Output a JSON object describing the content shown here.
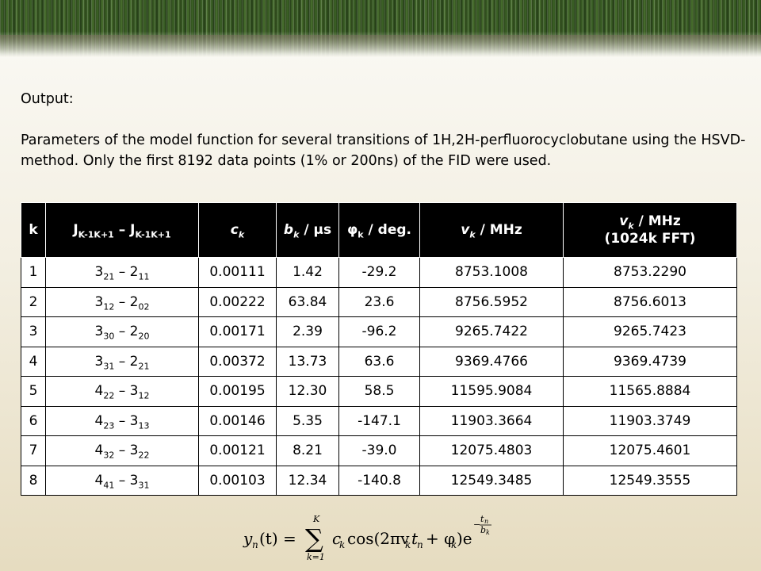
{
  "slide": {
    "output_label": "Output:",
    "description": "Parameters of the model function for several transitions of 1H,2H-perfluorocyclobutane using the HSVD-method.  Only the first 8192 data points (1% or 200ns) of the FID were used."
  },
  "table": {
    "headers": {
      "k": "k",
      "j_main": "J",
      "j_sub1": "K-1K+1",
      "j_dash": "–",
      "j_main2": "J",
      "j_sub2": "K-1K+1",
      "ck_main": "c",
      "ck_sub": "k",
      "bk_main": "b",
      "bk_sub": "k",
      "bk_unit": "/ μs",
      "phik_main": "φ",
      "phik_sub": "k",
      "phik_unit": "/ deg.",
      "vk_main": "v",
      "vk_sub": "k",
      "vk_unit": "/ MHz",
      "vk2_main": "v",
      "vk2_sub": "k",
      "vk2_unit": "/ MHz",
      "vk2_note": "(1024k FFT)"
    },
    "rows": [
      {
        "k": "1",
        "t1": "3",
        "t1s": "21",
        "dash": "–",
        "t2": "2",
        "t2s": "11",
        "c": "0.00111",
        "b": "1.42",
        "phi": "-29.2",
        "v": "8753.1008",
        "v2": "8753.2290"
      },
      {
        "k": "2",
        "t1": "3",
        "t1s": "12",
        "dash": "–",
        "t2": "2",
        "t2s": "02",
        "c": "0.00222",
        "b": "63.84",
        "phi": "23.6",
        "v": "8756.5952",
        "v2": "8756.6013"
      },
      {
        "k": "3",
        "t1": "3",
        "t1s": "30",
        "dash": "–",
        "t2": "2",
        "t2s": "20",
        "c": "0.00171",
        "b": "2.39",
        "phi": "-96.2",
        "v": "9265.7422",
        "v2": "9265.7423"
      },
      {
        "k": "4",
        "t1": "3",
        "t1s": "31",
        "dash": "–",
        "t2": "2",
        "t2s": "21",
        "c": "0.00372",
        "b": "13.73",
        "phi": "63.6",
        "v": "9369.4766",
        "v2": "9369.4739"
      },
      {
        "k": "5",
        "t1": "4",
        "t1s": "22",
        "dash": "–",
        "t2": "3",
        "t2s": "12",
        "c": "0.00195",
        "b": "12.30",
        "phi": "58.5",
        "v": "11595.9084",
        "v2": "11565.8884"
      },
      {
        "k": "6",
        "t1": "4",
        "t1s": "23",
        "dash": "–",
        "t2": "3",
        "t2s": "13",
        "c": "0.00146",
        "b": "5.35",
        "phi": "-147.1",
        "v": "11903.3664",
        "v2": "11903.3749"
      },
      {
        "k": "7",
        "t1": "4",
        "t1s": "32",
        "dash": "–",
        "t2": "3",
        "t2s": "22",
        "c": "0.00121",
        "b": "8.21",
        "phi": "-39.0",
        "v": "12075.4803",
        "v2": "12075.4601"
      },
      {
        "k": "8",
        "t1": "4",
        "t1s": "41",
        "dash": "–",
        "t2": "3",
        "t2s": "31",
        "c": "0.00103",
        "b": "12.34",
        "phi": "-140.8",
        "v": "12549.3485",
        "v2": "12549.3555"
      }
    ]
  },
  "formula": {
    "lhs_y": "y",
    "lhs_n": "n",
    "lhs_t": "(t) =",
    "sum_top": "K",
    "sum_sym": "∑",
    "sum_bottom": "k=1",
    "term": "c",
    "term_sub": "k",
    "cos": "cos(2πv",
    "cos_sub": "k",
    "t_n": "t",
    "t_n_sub": "n",
    "plus_phi": "+ φ",
    "phi_sub": "k",
    "close": ")e",
    "exp_minus": "−",
    "exp_num": "t",
    "exp_num_sub": "n",
    "exp_den": "b",
    "exp_den_sub": "k"
  }
}
